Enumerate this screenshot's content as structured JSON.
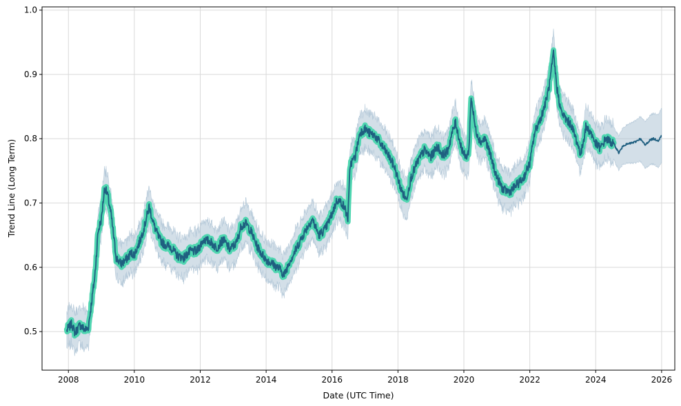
{
  "chart_data": {
    "type": "line",
    "title": "",
    "xlabel": "Date (UTC Time)",
    "ylabel": "Trend Line (Long Term)",
    "x_unit": "year",
    "xlim": [
      2007.2,
      2026.4
    ],
    "ylim": [
      0.44,
      1.005
    ],
    "x_ticks": [
      "2008",
      "2010",
      "2012",
      "2014",
      "2016",
      "2018",
      "2020",
      "2022",
      "2024",
      "2026"
    ],
    "y_ticks": [
      "0.5",
      "0.6",
      "0.7",
      "0.8",
      "0.9",
      "1.0"
    ],
    "grid": true,
    "colors": {
      "trend": "#1f5f80",
      "fitted_highlight": "#4fd6b0",
      "band_fill": "#a8bfd2",
      "grid": "#d9d9d9"
    },
    "fit_end_x": 2024.55,
    "series": [
      {
        "role": "trend",
        "points": [
          [
            2007.95,
            0.502
          ],
          [
            2008.1,
            0.512
          ],
          [
            2008.2,
            0.498
          ],
          [
            2008.35,
            0.51
          ],
          [
            2008.5,
            0.503
          ],
          [
            2008.6,
            0.505
          ],
          [
            2008.7,
            0.545
          ],
          [
            2008.8,
            0.585
          ],
          [
            2008.9,
            0.655
          ],
          [
            2009.0,
            0.675
          ],
          [
            2009.1,
            0.725
          ],
          [
            2009.2,
            0.71
          ],
          [
            2009.3,
            0.68
          ],
          [
            2009.45,
            0.615
          ],
          [
            2009.6,
            0.605
          ],
          [
            2009.75,
            0.612
          ],
          [
            2009.9,
            0.622
          ],
          [
            2010.0,
            0.62
          ],
          [
            2010.15,
            0.638
          ],
          [
            2010.3,
            0.662
          ],
          [
            2010.45,
            0.695
          ],
          [
            2010.6,
            0.665
          ],
          [
            2010.75,
            0.645
          ],
          [
            2010.9,
            0.636
          ],
          [
            2011.1,
            0.632
          ],
          [
            2011.3,
            0.618
          ],
          [
            2011.5,
            0.615
          ],
          [
            2011.7,
            0.625
          ],
          [
            2011.9,
            0.625
          ],
          [
            2012.1,
            0.643
          ],
          [
            2012.3,
            0.64
          ],
          [
            2012.5,
            0.63
          ],
          [
            2012.7,
            0.643
          ],
          [
            2012.9,
            0.628
          ],
          [
            2013.1,
            0.638
          ],
          [
            2013.25,
            0.665
          ],
          [
            2013.4,
            0.668
          ],
          [
            2013.55,
            0.655
          ],
          [
            2013.7,
            0.635
          ],
          [
            2013.85,
            0.622
          ],
          [
            2014.0,
            0.612
          ],
          [
            2014.2,
            0.605
          ],
          [
            2014.4,
            0.598
          ],
          [
            2014.55,
            0.588
          ],
          [
            2014.7,
            0.608
          ],
          [
            2014.85,
            0.622
          ],
          [
            2015.0,
            0.638
          ],
          [
            2015.2,
            0.658
          ],
          [
            2015.4,
            0.675
          ],
          [
            2015.6,
            0.65
          ],
          [
            2015.8,
            0.66
          ],
          [
            2016.0,
            0.683
          ],
          [
            2016.15,
            0.705
          ],
          [
            2016.3,
            0.7
          ],
          [
            2016.4,
            0.69
          ],
          [
            2016.48,
            0.675
          ],
          [
            2016.55,
            0.76
          ],
          [
            2016.7,
            0.772
          ],
          [
            2016.85,
            0.81
          ],
          [
            2017.0,
            0.815
          ],
          [
            2017.15,
            0.808
          ],
          [
            2017.3,
            0.805
          ],
          [
            2017.5,
            0.79
          ],
          [
            2017.7,
            0.775
          ],
          [
            2017.9,
            0.755
          ],
          [
            2018.1,
            0.72
          ],
          [
            2018.25,
            0.705
          ],
          [
            2018.4,
            0.74
          ],
          [
            2018.6,
            0.765
          ],
          [
            2018.8,
            0.782
          ],
          [
            2019.0,
            0.772
          ],
          [
            2019.2,
            0.788
          ],
          [
            2019.35,
            0.775
          ],
          [
            2019.5,
            0.78
          ],
          [
            2019.65,
            0.81
          ],
          [
            2019.75,
            0.825
          ],
          [
            2019.9,
            0.79
          ],
          [
            2020.05,
            0.77
          ],
          [
            2020.15,
            0.78
          ],
          [
            2020.22,
            0.865
          ],
          [
            2020.35,
            0.815
          ],
          [
            2020.5,
            0.795
          ],
          [
            2020.65,
            0.8
          ],
          [
            2020.8,
            0.775
          ],
          [
            2021.0,
            0.74
          ],
          [
            2021.2,
            0.72
          ],
          [
            2021.4,
            0.718
          ],
          [
            2021.6,
            0.728
          ],
          [
            2021.8,
            0.738
          ],
          [
            2022.0,
            0.762
          ],
          [
            2022.15,
            0.81
          ],
          [
            2022.35,
            0.835
          ],
          [
            2022.5,
            0.86
          ],
          [
            2022.6,
            0.885
          ],
          [
            2022.72,
            0.932
          ],
          [
            2022.82,
            0.88
          ],
          [
            2022.95,
            0.842
          ],
          [
            2023.1,
            0.83
          ],
          [
            2023.25,
            0.822
          ],
          [
            2023.4,
            0.8
          ],
          [
            2023.55,
            0.775
          ],
          [
            2023.7,
            0.818
          ],
          [
            2023.85,
            0.81
          ],
          [
            2024.0,
            0.792
          ],
          [
            2024.15,
            0.785
          ],
          [
            2024.3,
            0.8
          ],
          [
            2024.45,
            0.795
          ],
          [
            2024.55,
            0.792
          ],
          [
            2024.7,
            0.778
          ],
          [
            2024.85,
            0.79
          ],
          [
            2025.0,
            0.792
          ],
          [
            2025.2,
            0.795
          ],
          [
            2025.35,
            0.8
          ],
          [
            2025.5,
            0.79
          ],
          [
            2025.65,
            0.798
          ],
          [
            2025.75,
            0.8
          ],
          [
            2025.9,
            0.797
          ],
          [
            2026.0,
            0.805
          ]
        ]
      }
    ]
  }
}
